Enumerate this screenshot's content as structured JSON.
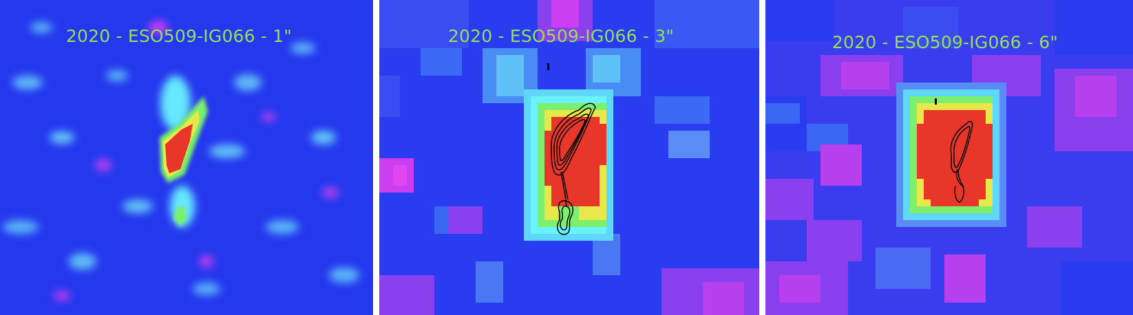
{
  "panels": [
    {
      "label": "2020 - ESO509-IG066 - 1\""
    },
    {
      "label": "2020 - ESO509-IG066 - 3\""
    },
    {
      "label": "2020 - ESO509-IG066 - 6\""
    }
  ],
  "colors": {
    "background": "#1f3af2",
    "cyan": "#6bf2ff",
    "magenta": "#cc3ef0",
    "green": "#7cf06c",
    "yellow": "#e7e84a",
    "red": "#e8372a",
    "contour": "#000000",
    "label": "#93e05a"
  }
}
